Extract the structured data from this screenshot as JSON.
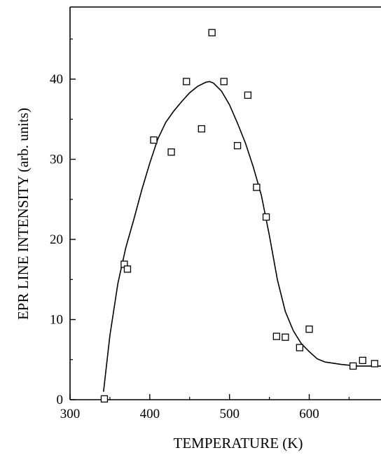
{
  "chart_data": {
    "type": "scatter",
    "xlabel": "TEMPERATURE (K)",
    "ylabel": "EPR LINE INTENSITY (arb. units)",
    "xlim": [
      300,
      690
    ],
    "ylim": [
      0,
      49
    ],
    "x_ticks": [
      300,
      400,
      500,
      600
    ],
    "y_ticks": [
      0,
      10,
      20,
      30,
      40
    ],
    "grid": false,
    "marker": "open-square",
    "series": [
      {
        "points": [
          [
            343,
            0.1
          ],
          [
            368,
            16.9
          ],
          [
            372,
            16.3
          ],
          [
            405,
            32.4
          ],
          [
            427,
            30.9
          ],
          [
            446,
            39.7
          ],
          [
            465,
            33.8
          ],
          [
            478,
            45.8
          ],
          [
            493,
            39.7
          ],
          [
            510,
            31.7
          ],
          [
            523,
            38.0
          ],
          [
            534,
            26.5
          ],
          [
            546,
            22.8
          ],
          [
            559,
            7.9
          ],
          [
            570,
            7.8
          ],
          [
            588,
            6.5
          ],
          [
            600,
            8.8
          ],
          [
            655,
            4.2
          ],
          [
            667,
            4.9
          ],
          [
            682,
            4.5
          ]
        ]
      },
      {
        "style": "line",
        "points": [
          [
            342,
            1.0
          ],
          [
            350,
            8.0
          ],
          [
            360,
            14.5
          ],
          [
            370,
            19.0
          ],
          [
            380,
            22.5
          ],
          [
            390,
            26.2
          ],
          [
            400,
            29.5
          ],
          [
            410,
            32.5
          ],
          [
            420,
            34.6
          ],
          [
            430,
            36.0
          ],
          [
            440,
            37.2
          ],
          [
            450,
            38.3
          ],
          [
            460,
            39.1
          ],
          [
            470,
            39.6
          ],
          [
            475,
            39.7
          ],
          [
            480,
            39.5
          ],
          [
            490,
            38.5
          ],
          [
            500,
            36.8
          ],
          [
            510,
            34.5
          ],
          [
            520,
            32.0
          ],
          [
            530,
            29.0
          ],
          [
            540,
            25.5
          ],
          [
            550,
            20.5
          ],
          [
            560,
            15.0
          ],
          [
            570,
            11.0
          ],
          [
            580,
            8.6
          ],
          [
            590,
            7.0
          ],
          [
            600,
            6.0
          ],
          [
            610,
            5.1
          ],
          [
            620,
            4.7
          ],
          [
            640,
            4.4
          ],
          [
            660,
            4.2
          ],
          [
            680,
            4.2
          ],
          [
            690,
            4.2
          ]
        ]
      }
    ]
  }
}
